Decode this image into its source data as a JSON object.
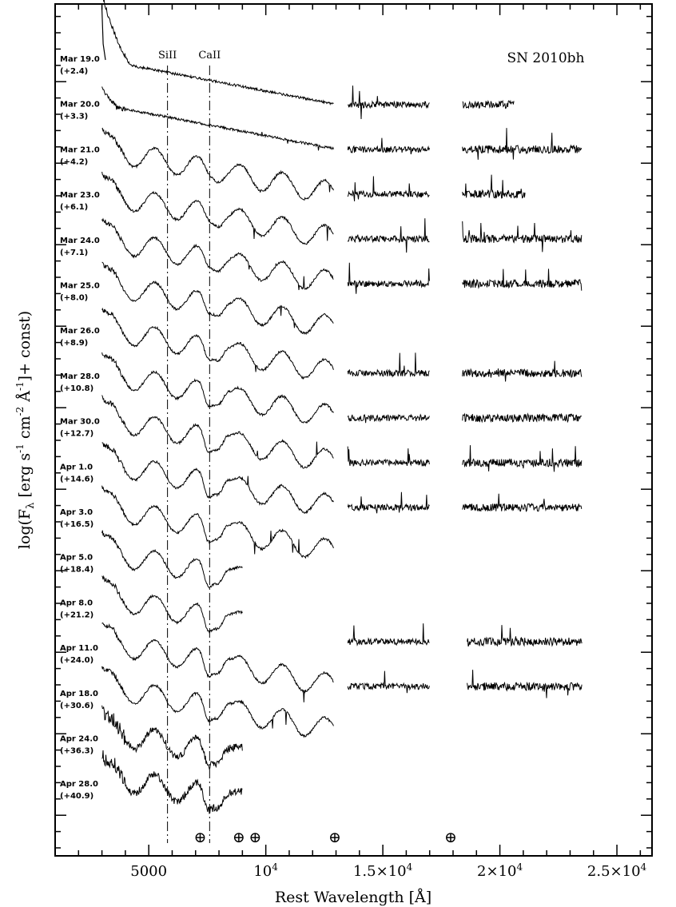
{
  "chart_data": {
    "type": "line",
    "title": "SN 2010bh",
    "xlabel": "Rest Wavelength [Å]",
    "ylabel": "log(F_λ [erg s⁻¹ cm⁻² Å⁻¹]+ const)",
    "ylabel_parts": {
      "pre": "log(F",
      "sub": "λ",
      "a": " [erg s",
      "s1": "-1",
      "b": " cm",
      "s2": "-2",
      "c": " Å",
      "s3": "-1",
      "d": "]+ const)"
    },
    "xlim": [
      1000,
      26500
    ],
    "x_ticks": [
      {
        "value": 5000,
        "label": "5000",
        "mant": "",
        "exp": ""
      },
      {
        "value": 10000,
        "label": "",
        "mant": "10",
        "exp": "4"
      },
      {
        "value": 15000,
        "label": "",
        "mant": "1.5×10",
        "exp": "4"
      },
      {
        "value": 20000,
        "label": "",
        "mant": "2×10",
        "exp": "4"
      },
      {
        "value": 25000,
        "label": "",
        "mant": "2.5×10",
        "exp": "4"
      }
    ],
    "y_ticks": "unlabeled",
    "vertical_lines": [
      {
        "label": "SiII",
        "x": 5800
      },
      {
        "label": "CaII",
        "x": 7600
      }
    ],
    "telluric_markers": [
      {
        "symbol": "⊕",
        "x": 7200
      },
      {
        "symbol": "⊕",
        "x": 8850
      },
      {
        "symbol": "⊕",
        "x": 9550
      },
      {
        "symbol": "⊕",
        "x": 12950
      },
      {
        "symbol": "⊕",
        "x": 17900
      }
    ],
    "series": [
      {
        "date": "Mar 19.0",
        "phase": "(+2.4)",
        "segments": [
          [
            3000,
            12900
          ]
        ]
      },
      {
        "date": "Mar 20.0",
        "phase": "(+3.3)",
        "segments": [
          [
            3000,
            12900
          ],
          [
            13500,
            17000
          ],
          [
            18400,
            20600
          ]
        ]
      },
      {
        "date": "Mar 21.0",
        "phase": "(+4.2)",
        "segments": [
          [
            3000,
            12900
          ],
          [
            13500,
            17000
          ],
          [
            18400,
            23500
          ]
        ]
      },
      {
        "date": "Mar 23.0",
        "phase": "(+6.1)",
        "segments": [
          [
            3000,
            12900
          ],
          [
            13500,
            17000
          ],
          [
            18400,
            21100
          ]
        ]
      },
      {
        "date": "Mar 24.0",
        "phase": "(+7.1)",
        "segments": [
          [
            3000,
            12900
          ],
          [
            13500,
            17000
          ],
          [
            18400,
            23500
          ]
        ]
      },
      {
        "date": "Mar 25.0",
        "phase": "(+8.0)",
        "segments": [
          [
            3000,
            12900
          ],
          [
            13500,
            17000
          ],
          [
            18400,
            23500
          ]
        ]
      },
      {
        "date": "Mar 26.0",
        "phase": "(+8.9)",
        "segments": [
          [
            3000,
            12900
          ]
        ]
      },
      {
        "date": "Mar 28.0",
        "phase": "(+10.8)",
        "segments": [
          [
            3000,
            12900
          ],
          [
            13500,
            17000
          ],
          [
            18400,
            23500
          ]
        ]
      },
      {
        "date": "Mar 30.0",
        "phase": "(+12.7)",
        "segments": [
          [
            3000,
            12900
          ],
          [
            13500,
            17000
          ],
          [
            18400,
            23500
          ]
        ]
      },
      {
        "date": "Apr 1.0",
        "phase": "(+14.6)",
        "segments": [
          [
            3000,
            12900
          ],
          [
            13500,
            17000
          ],
          [
            18400,
            23500
          ]
        ]
      },
      {
        "date": "Apr 3.0",
        "phase": "(+16.5)",
        "segments": [
          [
            3000,
            12900
          ],
          [
            13500,
            17000
          ],
          [
            18400,
            23500
          ]
        ]
      },
      {
        "date": "Apr 5.0",
        "phase": "(+18.4)",
        "segments": [
          [
            3000,
            9000
          ]
        ]
      },
      {
        "date": "Apr 8.0",
        "phase": "(+21.2)",
        "segments": [
          [
            3000,
            9000
          ]
        ]
      },
      {
        "date": "Apr 11.0",
        "phase": "(+24.0)",
        "segments": [
          [
            3000,
            12900
          ],
          [
            13500,
            17000
          ],
          [
            18600,
            23500
          ]
        ]
      },
      {
        "date": "Apr 18.0",
        "phase": "(+30.6)",
        "segments": [
          [
            3000,
            12900
          ],
          [
            13500,
            17000
          ],
          [
            18600,
            23500
          ]
        ]
      },
      {
        "date": "Apr 24.0",
        "phase": "(+36.3)",
        "segments": [
          [
            3000,
            9000
          ]
        ]
      },
      {
        "date": "Apr 28.0",
        "phase": "(+40.9)",
        "segments": [
          [
            3000,
            9000
          ]
        ]
      }
    ]
  }
}
